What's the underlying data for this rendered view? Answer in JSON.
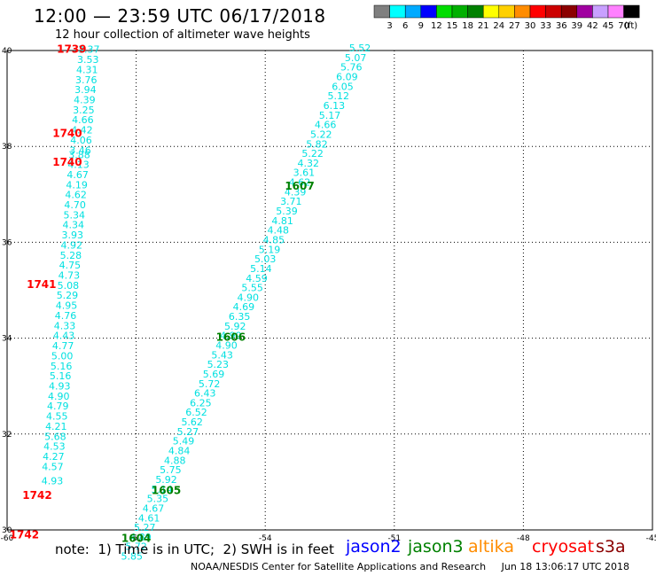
{
  "header": {
    "title": "12:00 — 23:59 UTC 06/17/2018",
    "subtitle": "12 hour collection of altimeter wave heights"
  },
  "colorbar": {
    "unit": "(ft)",
    "bins": [
      {
        "label": "3",
        "color": "#7f7f7f"
      },
      {
        "label": "6",
        "color": "#00ffff"
      },
      {
        "label": "9",
        "color": "#00aaff"
      },
      {
        "label": "12",
        "color": "#0000ff"
      },
      {
        "label": "15",
        "color": "#00dd00"
      },
      {
        "label": "18",
        "color": "#00b000"
      },
      {
        "label": "21",
        "color": "#008000"
      },
      {
        "label": "24",
        "color": "#ffff00"
      },
      {
        "label": "27",
        "color": "#ffd000"
      },
      {
        "label": "30",
        "color": "#ff8c00"
      },
      {
        "label": "33",
        "color": "#ff0000"
      },
      {
        "label": "36",
        "color": "#cc0000"
      },
      {
        "label": "39",
        "color": "#8b0000"
      },
      {
        "label": "42",
        "color": "#a000a0"
      },
      {
        "label": "45",
        "color": "#c8a0ff"
      },
      {
        "label": "70",
        "color": "#ff80ff"
      },
      {
        "label": "",
        "color": "#000000"
      }
    ]
  },
  "chart_data": {
    "type": "scatter",
    "xlim": [
      -60,
      -45
    ],
    "ylim": [
      30,
      40
    ],
    "x_ticks": [
      "-60",
      "-57",
      "-54",
      "-51",
      "-48",
      "-45"
    ],
    "y_ticks": [
      "30",
      "32",
      "34",
      "36",
      "38",
      "40"
    ],
    "grid": "dotted",
    "point_color": "#00e0e0",
    "tracks": [
      {
        "name": "",
        "points": [
          {
            "x": -58.1,
            "y": 39.95,
            "v": "3.37"
          },
          {
            "x": -58.12,
            "y": 39.74,
            "v": "3.53"
          },
          {
            "x": -58.14,
            "y": 39.53,
            "v": "4.31"
          },
          {
            "x": -58.16,
            "y": 39.32,
            "v": "3.76"
          },
          {
            "x": -58.18,
            "y": 39.11,
            "v": "3.94"
          },
          {
            "x": -58.2,
            "y": 38.9,
            "v": "4.39"
          },
          {
            "x": -58.22,
            "y": 38.69,
            "v": "3.25"
          },
          {
            "x": -58.24,
            "y": 38.48,
            "v": "4.66"
          },
          {
            "x": -58.26,
            "y": 38.27,
            "v": "4.42"
          },
          {
            "x": -58.28,
            "y": 38.06,
            "v": "4.06"
          },
          {
            "x": -58.3,
            "y": 37.85,
            "v": "3.46"
          },
          {
            "x": -58.32,
            "y": 37.75,
            "v": "3.88"
          },
          {
            "x": -58.34,
            "y": 37.55,
            "v": "4.13"
          },
          {
            "x": -58.36,
            "y": 37.34,
            "v": "4.67"
          },
          {
            "x": -58.38,
            "y": 37.13,
            "v": "4.19"
          },
          {
            "x": -58.4,
            "y": 36.92,
            "v": "4.62"
          },
          {
            "x": -58.42,
            "y": 36.71,
            "v": "4.70"
          },
          {
            "x": -58.44,
            "y": 36.5,
            "v": "5.34"
          },
          {
            "x": -58.46,
            "y": 36.29,
            "v": "4.34"
          },
          {
            "x": -58.48,
            "y": 36.08,
            "v": "3.93"
          },
          {
            "x": -58.5,
            "y": 35.87,
            "v": "4.92"
          },
          {
            "x": -58.52,
            "y": 35.66,
            "v": "5.28"
          },
          {
            "x": -58.54,
            "y": 35.45,
            "v": "4.75"
          },
          {
            "x": -58.56,
            "y": 35.24,
            "v": "4.73"
          },
          {
            "x": -58.58,
            "y": 35.03,
            "v": "5.08"
          },
          {
            "x": -58.6,
            "y": 34.82,
            "v": "5.29"
          },
          {
            "x": -58.62,
            "y": 34.61,
            "v": "4.95"
          },
          {
            "x": -58.64,
            "y": 34.4,
            "v": "4.76"
          },
          {
            "x": -58.66,
            "y": 34.19,
            "v": "4.33"
          },
          {
            "x": -58.68,
            "y": 33.98,
            "v": "4.43"
          },
          {
            "x": -58.7,
            "y": 33.77,
            "v": "4.77"
          },
          {
            "x": -58.72,
            "y": 33.56,
            "v": "5.00"
          },
          {
            "x": -58.74,
            "y": 33.35,
            "v": "5.16"
          },
          {
            "x": -58.76,
            "y": 33.14,
            "v": "5.16"
          },
          {
            "x": -58.78,
            "y": 32.93,
            "v": "4.93"
          },
          {
            "x": -58.8,
            "y": 32.72,
            "v": "4.90"
          },
          {
            "x": -58.82,
            "y": 32.51,
            "v": "4.79"
          },
          {
            "x": -58.84,
            "y": 32.3,
            "v": "4.55"
          },
          {
            "x": -58.86,
            "y": 32.09,
            "v": "4.21"
          },
          {
            "x": -58.88,
            "y": 31.88,
            "v": "5.68"
          },
          {
            "x": -58.9,
            "y": 31.67,
            "v": "4.53"
          },
          {
            "x": -58.92,
            "y": 31.46,
            "v": "4.27"
          },
          {
            "x": -58.94,
            "y": 31.25,
            "v": "4.57"
          },
          {
            "x": -58.95,
            "y": 30.95,
            "v": "4.93"
          }
        ]
      },
      {
        "name": "",
        "points": [
          {
            "x": -51.8,
            "y": 39.98,
            "v": "5.52"
          },
          {
            "x": -51.9,
            "y": 39.78,
            "v": "5.07"
          },
          {
            "x": -52.0,
            "y": 39.58,
            "v": "5.76"
          },
          {
            "x": -52.1,
            "y": 39.38,
            "v": "6.09"
          },
          {
            "x": -52.2,
            "y": 39.18,
            "v": "6.05"
          },
          {
            "x": -52.3,
            "y": 38.98,
            "v": "5.12"
          },
          {
            "x": -52.4,
            "y": 38.78,
            "v": "6.13"
          },
          {
            "x": -52.5,
            "y": 38.58,
            "v": "5.17"
          },
          {
            "x": -52.6,
            "y": 38.38,
            "v": "4.66"
          },
          {
            "x": -52.7,
            "y": 38.18,
            "v": "5.22"
          },
          {
            "x": -52.8,
            "y": 37.98,
            "v": "5.82"
          },
          {
            "x": -52.9,
            "y": 37.78,
            "v": "5.22"
          },
          {
            "x": -53.0,
            "y": 37.58,
            "v": "4.32"
          },
          {
            "x": -53.1,
            "y": 37.38,
            "v": "3.61"
          },
          {
            "x": -53.2,
            "y": 37.18,
            "v": "4.62"
          },
          {
            "x": -53.3,
            "y": 36.98,
            "v": "4.39"
          },
          {
            "x": -53.4,
            "y": 36.78,
            "v": "3.71"
          },
          {
            "x": -53.5,
            "y": 36.58,
            "v": "5.39"
          },
          {
            "x": -53.6,
            "y": 36.38,
            "v": "4.81"
          },
          {
            "x": -53.7,
            "y": 36.18,
            "v": "4.48"
          },
          {
            "x": -53.8,
            "y": 35.98,
            "v": "4.85"
          },
          {
            "x": -53.9,
            "y": 35.78,
            "v": "5.19"
          },
          {
            "x": -54.0,
            "y": 35.58,
            "v": "5.03"
          },
          {
            "x": -54.1,
            "y": 35.38,
            "v": "5.14"
          },
          {
            "x": -54.2,
            "y": 35.18,
            "v": "4.59"
          },
          {
            "x": -54.3,
            "y": 34.98,
            "v": "5.55"
          },
          {
            "x": -54.4,
            "y": 34.78,
            "v": "4.90"
          },
          {
            "x": -54.5,
            "y": 34.58,
            "v": "4.69"
          },
          {
            "x": -54.6,
            "y": 34.38,
            "v": "6.35"
          },
          {
            "x": -54.7,
            "y": 34.18,
            "v": "5.92"
          },
          {
            "x": -54.8,
            "y": 33.98,
            "v": "4.99"
          },
          {
            "x": -54.9,
            "y": 33.78,
            "v": "4.90"
          },
          {
            "x": -55.0,
            "y": 33.58,
            "v": "5.43"
          },
          {
            "x": -55.1,
            "y": 33.38,
            "v": "5.23"
          },
          {
            "x": -55.2,
            "y": 33.18,
            "v": "5.69"
          },
          {
            "x": -55.3,
            "y": 32.98,
            "v": "5.72"
          },
          {
            "x": -55.4,
            "y": 32.78,
            "v": "6.43"
          },
          {
            "x": -55.5,
            "y": 32.58,
            "v": "6.25"
          },
          {
            "x": -55.6,
            "y": 32.38,
            "v": "6.52"
          },
          {
            "x": -55.7,
            "y": 32.18,
            "v": "5.62"
          },
          {
            "x": -55.8,
            "y": 31.98,
            "v": "5.27"
          },
          {
            "x": -55.9,
            "y": 31.78,
            "v": "5.49"
          },
          {
            "x": -56.0,
            "y": 31.58,
            "v": "4.84"
          },
          {
            "x": -56.1,
            "y": 31.38,
            "v": "4.88"
          },
          {
            "x": -56.2,
            "y": 31.18,
            "v": "5.75"
          },
          {
            "x": -56.3,
            "y": 30.98,
            "v": "5.92"
          },
          {
            "x": -56.4,
            "y": 30.78,
            "v": "5.14"
          },
          {
            "x": -56.5,
            "y": 30.58,
            "v": "5.35"
          },
          {
            "x": -56.6,
            "y": 30.38,
            "v": "4.67"
          },
          {
            "x": -56.7,
            "y": 30.18,
            "v": "4.61"
          },
          {
            "x": -56.8,
            "y": 29.98,
            "v": "5.27"
          },
          {
            "x": -56.9,
            "y": 29.78,
            "v": "4.89"
          },
          {
            "x": -57.0,
            "y": 29.58,
            "v": "5.72"
          },
          {
            "x": -57.1,
            "y": 29.38,
            "v": "5.85"
          }
        ]
      }
    ],
    "time_labels": [
      {
        "text": "1739",
        "x": -58.5,
        "y": 39.95,
        "color": "#ff0000"
      },
      {
        "text": "1740",
        "x": -58.6,
        "y": 38.2,
        "color": "#ff0000"
      },
      {
        "text": "1740",
        "x": -58.6,
        "y": 37.6,
        "color": "#ff0000"
      },
      {
        "text": "1741",
        "x": -59.2,
        "y": 35.05,
        "color": "#ff0000"
      },
      {
        "text": "1742",
        "x": -59.3,
        "y": 30.65,
        "color": "#ff0000"
      },
      {
        "text": "1742",
        "x": -59.6,
        "y": 29.82,
        "color": "#ff0000"
      },
      {
        "text": "1607",
        "x": -53.2,
        "y": 37.1,
        "color": "#008000"
      },
      {
        "text": "1606",
        "x": -54.8,
        "y": 33.95,
        "color": "#008000"
      },
      {
        "text": "1605",
        "x": -56.3,
        "y": 30.75,
        "color": "#008000"
      },
      {
        "text": "1604",
        "x": -57.0,
        "y": 29.75,
        "color": "#008000"
      }
    ]
  },
  "notes": {
    "note_text": "note:  1) Time is in UTC;  2) SWH is in feet"
  },
  "satellites": [
    {
      "name": "jason2",
      "color": "#0000ff"
    },
    {
      "name": "jason3",
      "color": "#008000"
    },
    {
      "name": "altika",
      "color": "#ff8c00"
    },
    {
      "name": "cryosat",
      "color": "#ff0000"
    },
    {
      "name": "s3a",
      "color": "#8b0000"
    }
  ],
  "footer": {
    "credit": "NOAA/NESDIS Center for Satellite Applications and Research     Jun 18 13:06:17 UTC 2018"
  }
}
